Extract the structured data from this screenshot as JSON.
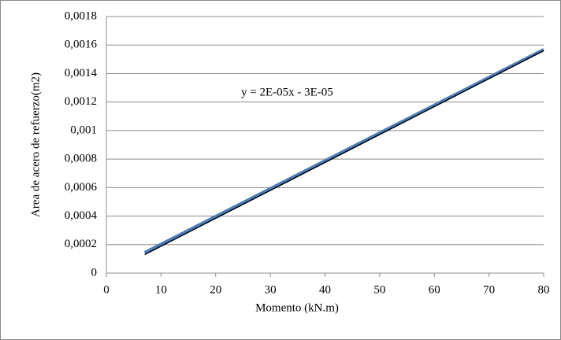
{
  "chart_data": {
    "type": "line",
    "ylabel": "Area de acero de refuerzo(m2)",
    "xlabel": "Momento (kN.m)",
    "xlim": [
      0,
      80
    ],
    "xticks": [
      0,
      10,
      20,
      30,
      40,
      50,
      60,
      70,
      80
    ],
    "ylim": [
      0,
      0.0018
    ],
    "yticks": [
      0,
      {
        "value": 0.0002,
        "label": "0,0002"
      },
      {
        "value": 0.0004,
        "label": "0,0004"
      },
      {
        "value": 0.0006,
        "label": "0,0006"
      },
      {
        "value": 0.0008,
        "label": "0,0008"
      },
      {
        "value": 0.001,
        "label": "0,001"
      },
      {
        "value": 0.0012,
        "label": "0,0012"
      },
      {
        "value": 0.0014,
        "label": "0,0014"
      },
      {
        "value": 0.0016,
        "label": "0,0016"
      },
      {
        "value": 0.0018,
        "label": "0,0018"
      }
    ],
    "grid": true,
    "series": [
      {
        "color": "#4a7ebb",
        "x": [
          7,
          80
        ],
        "values": [
          0.000145,
          0.00157
        ]
      }
    ],
    "trendline": {
      "label": "y = 2E-05x - 3E-05",
      "color": "#000000",
      "x": [
        7,
        80
      ],
      "values": [
        0.00013,
        0.00156
      ]
    }
  }
}
